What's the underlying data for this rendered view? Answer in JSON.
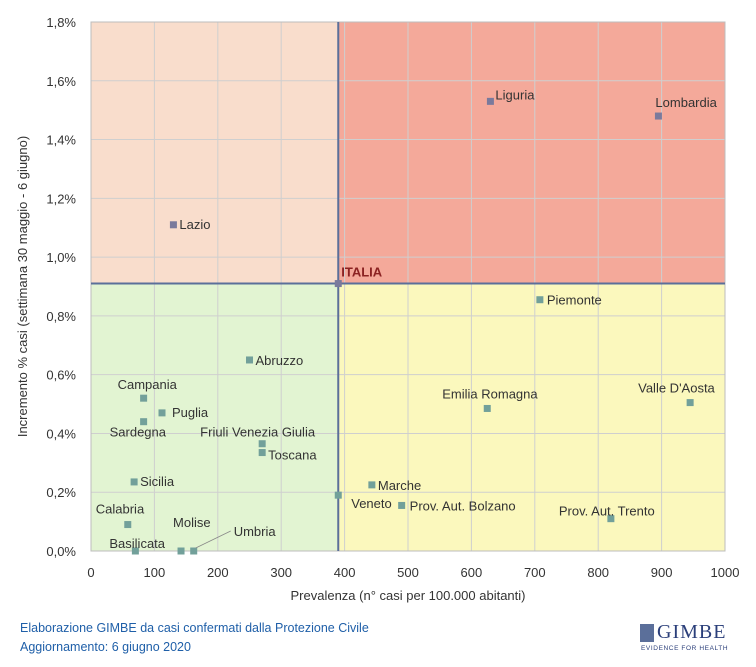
{
  "chart_data": {
    "type": "scatter",
    "xlabel": "Prevalenza  (n° casi per 100.000 abitanti)",
    "ylabel": "Incremento %  casi (settimana 30 maggio - 6 giugno)",
    "xlim": [
      0,
      1000
    ],
    "ylim": [
      0,
      1.8
    ],
    "xticks": [
      "0",
      "100",
      "200",
      "300",
      "400",
      "500",
      "600",
      "700",
      "800",
      "900",
      "1000"
    ],
    "yticks": [
      "0,0%",
      "0,2%",
      "0,4%",
      "0,6%",
      "0,8%",
      "1,0%",
      "1,2%",
      "1,4%",
      "1,6%",
      "1,8%"
    ],
    "grid": true,
    "reference": {
      "label": "ITALIA",
      "x": 390,
      "y": 0.91
    },
    "quadrant_colors": {
      "top_left": "#f9ddcc",
      "top_right": "#f4a99a",
      "bottom_left": "#e2f4d2",
      "bottom_right": "#fbf8bd"
    },
    "marker_colors": {
      "top": "#7a7a9c",
      "bottom": "#72a09a"
    },
    "points": [
      {
        "label": "Liguria",
        "x": 630,
        "y": 1.53
      },
      {
        "label": "Lombardia",
        "x": 895,
        "y": 1.48
      },
      {
        "label": "Lazio",
        "x": 130,
        "y": 1.11
      },
      {
        "label": "Piemonte",
        "x": 708,
        "y": 0.855
      },
      {
        "label": "Abruzzo",
        "x": 250,
        "y": 0.65
      },
      {
        "label": "Campania",
        "x": 83,
        "y": 0.52
      },
      {
        "label": "Puglia",
        "x": 112,
        "y": 0.47
      },
      {
        "label": "Sardegna",
        "x": 83,
        "y": 0.44
      },
      {
        "label": "Friuli Venezia Giulia",
        "x": 270,
        "y": 0.365
      },
      {
        "label": "Toscana",
        "x": 270,
        "y": 0.335
      },
      {
        "label": "Emilia Romagna",
        "x": 625,
        "y": 0.485
      },
      {
        "label": "Valle D'Aosta",
        "x": 945,
        "y": 0.505
      },
      {
        "label": "Sicilia",
        "x": 68,
        "y": 0.235
      },
      {
        "label": "Marche",
        "x": 443,
        "y": 0.225
      },
      {
        "label": "Veneto",
        "x": 390,
        "y": 0.19
      },
      {
        "label": "Prov. Aut. Bolzano",
        "x": 490,
        "y": 0.155
      },
      {
        "label": "Prov. Aut. Trento",
        "x": 820,
        "y": 0.11
      },
      {
        "label": "Calabria",
        "x": 58,
        "y": 0.09
      },
      {
        "label": "Molise",
        "x": 142,
        "y": 0.0
      },
      {
        "label": "Umbria",
        "x": 162,
        "y": 0.0
      },
      {
        "label": "Basilicata",
        "x": 70,
        "y": 0.0
      }
    ]
  },
  "footer": {
    "line1": "Elaborazione GIMBE da casi confermati dalla Protezione Civile",
    "line2": "Aggiornamento: 6 giugno 2020"
  },
  "logo": {
    "name": "GIMBE",
    "tagline": "EVIDENCE FOR HEALTH"
  }
}
